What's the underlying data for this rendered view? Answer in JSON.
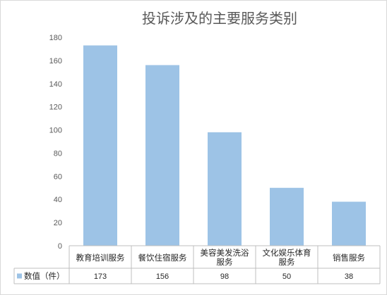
{
  "chart_data": {
    "type": "bar",
    "title": "投诉涉及的主要服务类别",
    "categories": [
      "教育培训服务",
      "餐饮住宿服务",
      "美容美发洗浴服务",
      "文化娱乐体育服务",
      "销售服务"
    ],
    "series": [
      {
        "name": "数值（件）",
        "values": [
          173,
          156,
          98,
          50,
          38
        ],
        "color": "#9dc3e6"
      }
    ],
    "ylim": [
      0,
      180
    ],
    "yticks": [
      0,
      20,
      40,
      60,
      80,
      100,
      120,
      140,
      160,
      180
    ],
    "grid": false,
    "data_table": true,
    "legend": "data-table-left"
  }
}
